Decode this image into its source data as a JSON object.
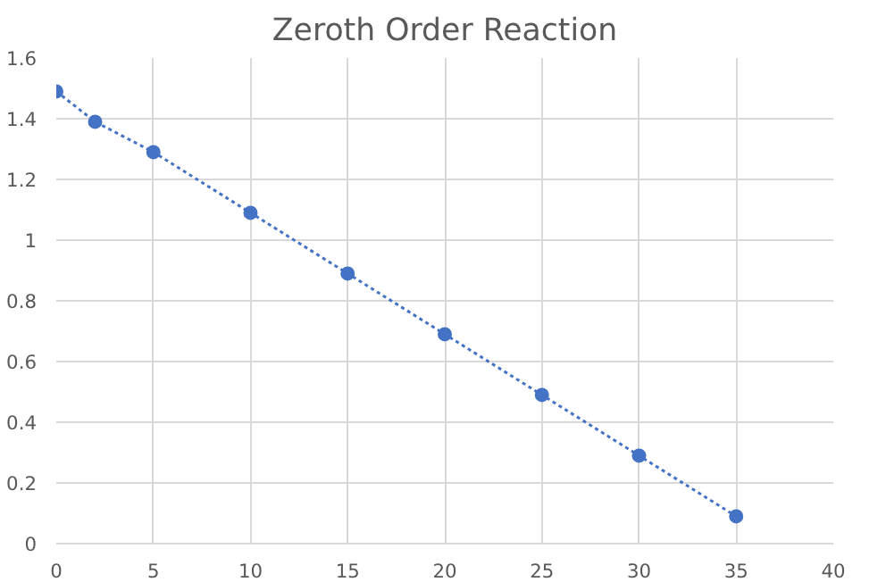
{
  "chart_data": {
    "type": "line",
    "title": "Zeroth Order Reaction",
    "x": [
      0,
      2,
      5,
      10,
      15,
      20,
      25,
      30,
      35
    ],
    "series": [
      {
        "color": "#4472c4",
        "values": [
          1.49,
          1.39,
          1.29,
          1.09,
          0.89,
          0.69,
          0.49,
          0.29,
          0.09
        ]
      }
    ],
    "xlim": [
      0,
      40
    ],
    "xticks": [
      0,
      5,
      10,
      15,
      20,
      25,
      30,
      35,
      40
    ],
    "ylim": [
      0,
      1.6
    ],
    "yticks": [
      0,
      {
        "value": 0.2,
        "label": "0.2"
      },
      {
        "value": 0.4,
        "label": "0.4"
      },
      {
        "value": 0.6,
        "label": "0.6"
      },
      {
        "value": 0.8,
        "label": "0.8"
      },
      1,
      {
        "value": 1.2,
        "label": "1.2"
      },
      {
        "value": 1.4,
        "label": "1.4"
      },
      {
        "value": 1.6,
        "label": "1.6"
      }
    ],
    "grid": true,
    "marker": "circle",
    "line_style": "dotted"
  }
}
